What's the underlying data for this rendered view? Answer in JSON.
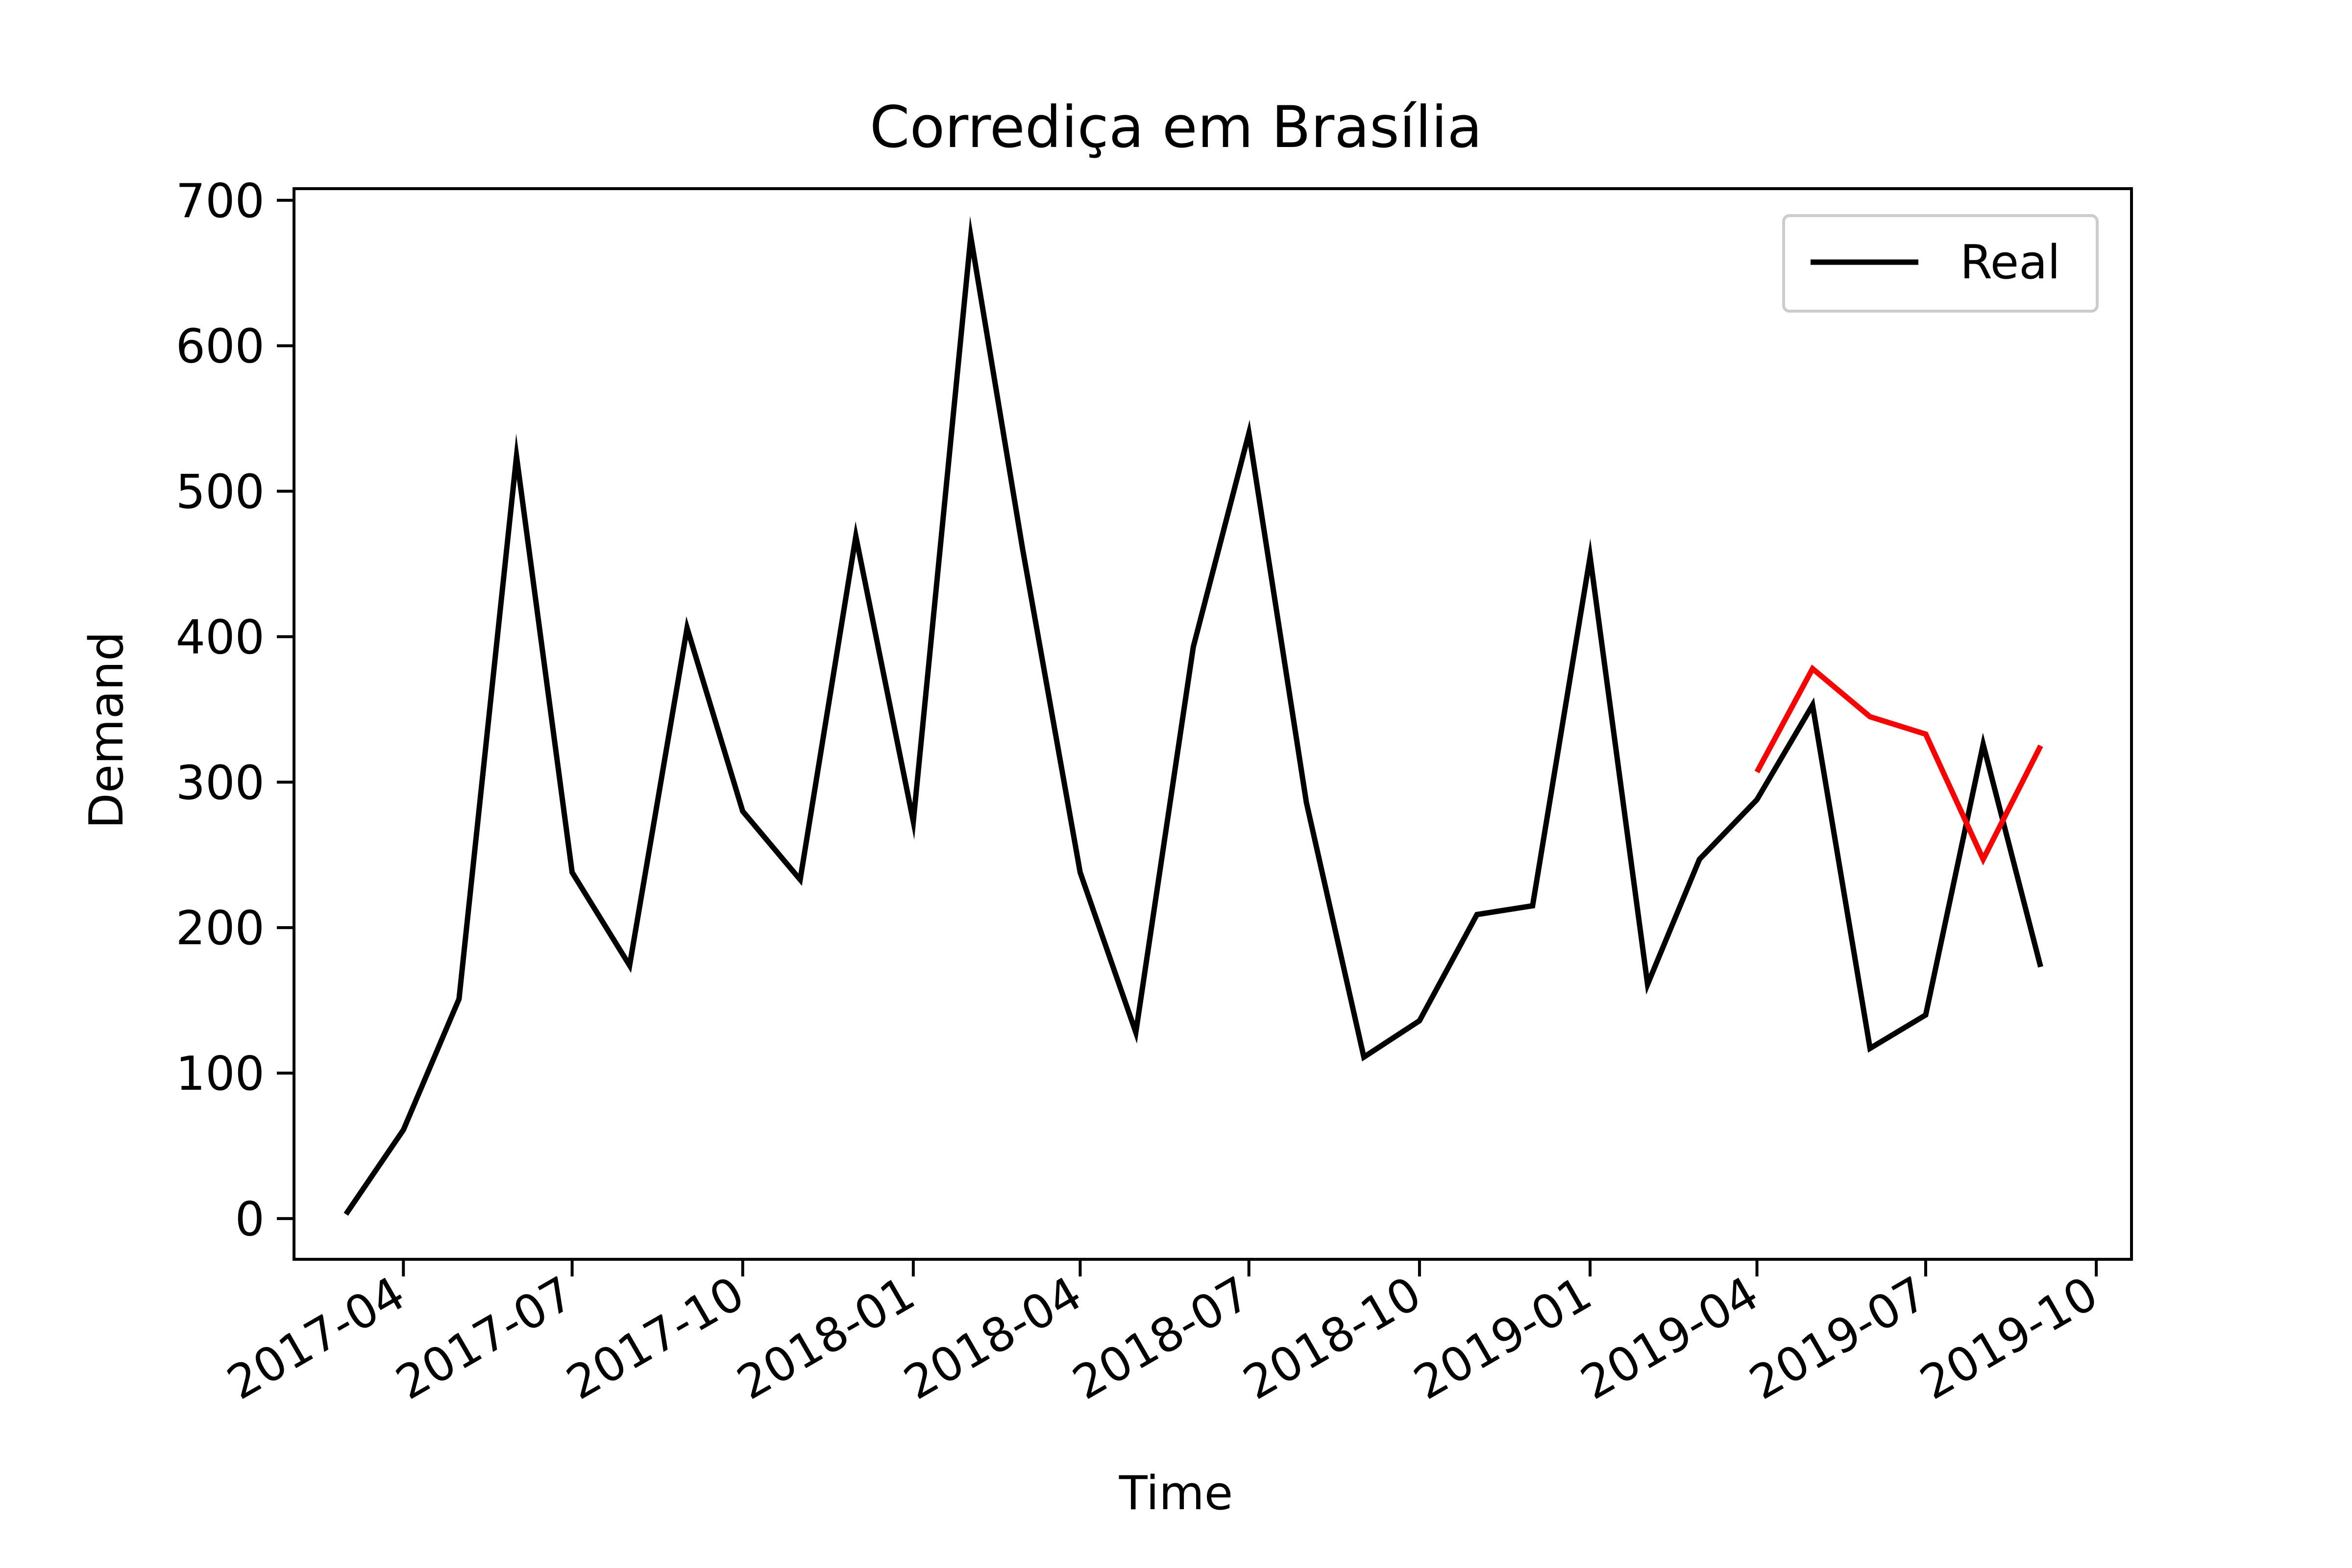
{
  "chart_data": {
    "type": "line",
    "title": "Corrediça em Brasília",
    "xlabel": "Time",
    "ylabel": "Demand",
    "x_ticks": [
      "2017-04",
      "2017-07",
      "2017-10",
      "2018-01",
      "2018-04",
      "2018-07",
      "2018-10",
      "2019-01",
      "2019-04",
      "2019-07",
      "2019-10"
    ],
    "y_ticks": [
      0,
      100,
      200,
      300,
      400,
      500,
      600,
      700
    ],
    "xlim": [
      "2017-02-01",
      "2019-10-20"
    ],
    "ylim": [
      -28,
      708
    ],
    "grid": false,
    "legend_position": "top-right",
    "legend": [
      "Real"
    ],
    "series": [
      {
        "name": "Real",
        "color": "#000000",
        "points": [
          [
            "2017-03",
            3
          ],
          [
            "2017-04",
            61
          ],
          [
            "2017-05",
            151
          ],
          [
            "2017-06",
            524
          ],
          [
            "2017-07",
            238
          ],
          [
            "2017-08",
            174
          ],
          [
            "2017-09",
            406
          ],
          [
            "2017-10",
            280
          ],
          [
            "2017-11",
            233
          ],
          [
            "2017-12",
            469
          ],
          [
            "2018-01",
            273
          ],
          [
            "2018-02",
            675
          ],
          [
            "2018-03",
            460
          ],
          [
            "2018-04",
            238
          ],
          [
            "2018-05",
            128
          ],
          [
            "2018-06",
            393
          ],
          [
            "2018-07",
            540
          ],
          [
            "2018-08",
            286
          ],
          [
            "2018-09",
            111
          ],
          [
            "2018-10",
            136
          ],
          [
            "2018-11",
            209
          ],
          [
            "2018-12",
            215
          ],
          [
            "2019-01",
            455
          ],
          [
            "2019-02",
            161
          ],
          [
            "2019-03",
            247
          ],
          [
            "2019-04",
            288
          ],
          [
            "2019-05",
            353
          ],
          [
            "2019-06",
            117
          ],
          [
            "2019-07",
            140
          ],
          [
            "2019-08",
            326
          ],
          [
            "2019-09",
            173
          ]
        ]
      },
      {
        "color": "#ff0000",
        "points": [
          [
            "2019-04",
            307
          ],
          [
            "2019-05",
            378
          ],
          [
            "2019-06",
            345
          ],
          [
            "2019-07",
            333
          ],
          [
            "2019-08",
            247
          ],
          [
            "2019-09",
            325
          ]
        ]
      }
    ]
  }
}
